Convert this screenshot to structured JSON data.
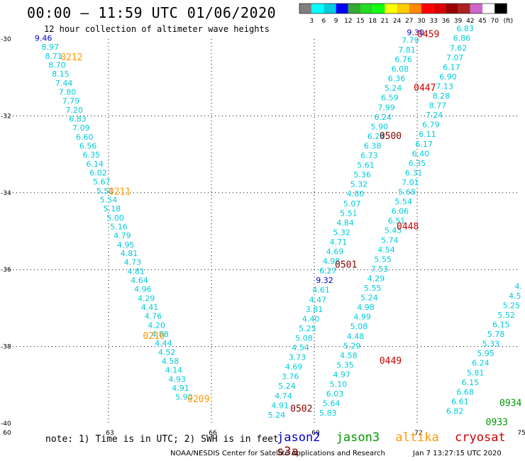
{
  "header": {
    "title": "00:00 — 11:59 UTC 01/06/2020",
    "subtitle": "12 hour collection of altimeter wave heights"
  },
  "colors": {
    "jason2": "#0000cc",
    "jason3": "#009900",
    "altika": "#ff9900",
    "cryosat": "#cc0000",
    "s3a": "#880000",
    "swh_low": "#00ccdd"
  },
  "color_scale": {
    "labels": [
      "3",
      "6",
      "9",
      "12",
      "15",
      "18",
      "21",
      "24",
      "27",
      "30",
      "33",
      "36",
      "39",
      "42",
      "45",
      "70"
    ],
    "unit": "(ft)",
    "colors": [
      "#808080",
      "#00ffff",
      "#00ccdd",
      "#0000ff",
      "#33aa33",
      "#22dd22",
      "#11ff11",
      "#ffff00",
      "#ffcc00",
      "#ff8800",
      "#ff0000",
      "#dd0000",
      "#990000",
      "#aa2222",
      "#cc66cc",
      "#ffffff",
      "#000000"
    ]
  },
  "chart_data": {
    "type": "scatter",
    "xlim": [
      60,
      75
    ],
    "ylim": [
      -40,
      -30
    ],
    "xticks": [
      "60",
      "63",
      "66",
      "69",
      "72",
      "75"
    ],
    "yticks": [
      "-30",
      "-32",
      "-34",
      "-36",
      "-38",
      "-40"
    ],
    "grid": true,
    "tracks": [
      {
        "name": "track-0209-0212",
        "color": "#00ccdd",
        "points": [
          {
            "lon": 61.1,
            "lat": -30.05,
            "v": "9.46"
          },
          {
            "lon": 61.3,
            "lat": -30.28,
            "v": "8.97"
          },
          {
            "lon": 61.4,
            "lat": -30.52,
            "v": "8.71"
          },
          {
            "lon": 61.5,
            "lat": -30.75,
            "v": "8.70"
          },
          {
            "lon": 61.6,
            "lat": -30.98,
            "v": "8.15"
          },
          {
            "lon": 61.7,
            "lat": -31.22,
            "v": "7.44"
          },
          {
            "lon": 61.8,
            "lat": -31.45,
            "v": "7.80"
          },
          {
            "lon": 61.9,
            "lat": -31.68,
            "v": "7.79"
          },
          {
            "lon": 62.0,
            "lat": -31.92,
            "v": "7.20"
          },
          {
            "lon": 62.1,
            "lat": -32.15,
            "v": "6.83"
          },
          {
            "lon": 62.2,
            "lat": -32.38,
            "v": "7.09"
          },
          {
            "lon": 62.3,
            "lat": -32.62,
            "v": "6.60"
          },
          {
            "lon": 62.4,
            "lat": -32.85,
            "v": "6.56"
          },
          {
            "lon": 62.5,
            "lat": -33.08,
            "v": "6.35"
          },
          {
            "lon": 62.6,
            "lat": -33.32,
            "v": "6.14"
          },
          {
            "lon": 62.7,
            "lat": -33.55,
            "v": "6.02"
          },
          {
            "lon": 62.8,
            "lat": -33.78,
            "v": "5.67"
          },
          {
            "lon": 62.9,
            "lat": -34.02,
            "v": "5.51"
          },
          {
            "lon": 63.0,
            "lat": -34.25,
            "v": "5.54"
          },
          {
            "lon": 63.1,
            "lat": -34.48,
            "v": "5.18"
          },
          {
            "lon": 63.2,
            "lat": -34.72,
            "v": "5.00"
          },
          {
            "lon": 63.3,
            "lat": -34.95,
            "v": "5.16"
          },
          {
            "lon": 63.4,
            "lat": -35.18,
            "v": "4.79"
          },
          {
            "lon": 63.5,
            "lat": -35.42,
            "v": "4.95"
          },
          {
            "lon": 63.6,
            "lat": -35.65,
            "v": "4.81"
          },
          {
            "lon": 63.7,
            "lat": -35.88,
            "v": "4.73"
          },
          {
            "lon": 63.8,
            "lat": -36.12,
            "v": "4.81"
          },
          {
            "lon": 63.9,
            "lat": -36.35,
            "v": "4.64"
          },
          {
            "lon": 64.0,
            "lat": -36.58,
            "v": "4.96"
          },
          {
            "lon": 64.1,
            "lat": -36.82,
            "v": "4.29"
          },
          {
            "lon": 64.2,
            "lat": -37.05,
            "v": "4.41"
          },
          {
            "lon": 64.3,
            "lat": -37.28,
            "v": "4.76"
          },
          {
            "lon": 64.4,
            "lat": -37.52,
            "v": "4.20"
          },
          {
            "lon": 64.5,
            "lat": -37.75,
            "v": "4.88"
          },
          {
            "lon": 64.6,
            "lat": -37.98,
            "v": "4.44"
          },
          {
            "lon": 64.7,
            "lat": -38.22,
            "v": "4.52"
          },
          {
            "lon": 64.8,
            "lat": -38.45,
            "v": "4.58"
          },
          {
            "lon": 64.9,
            "lat": -38.68,
            "v": "4.14"
          },
          {
            "lon": 65.0,
            "lat": -38.92,
            "v": "4.93"
          },
          {
            "lon": 65.1,
            "lat": -39.15,
            "v": "4.91"
          },
          {
            "lon": 65.2,
            "lat": -39.38,
            "v": "5.90"
          }
        ]
      },
      {
        "name": "track-0502",
        "color": "#00ccdd",
        "points": [
          {
            "lon": 67.9,
            "lat": -39.85,
            "v": "5.24"
          },
          {
            "lon": 68.0,
            "lat": -39.6,
            "v": "4.91"
          },
          {
            "lon": 68.1,
            "lat": -39.35,
            "v": "4.74"
          },
          {
            "lon": 68.2,
            "lat": -39.1,
            "v": "5.24"
          },
          {
            "lon": 68.3,
            "lat": -38.85,
            "v": "3.76"
          },
          {
            "lon": 68.4,
            "lat": -38.6,
            "v": "4.69"
          },
          {
            "lon": 68.5,
            "lat": -38.35,
            "v": "3.73"
          },
          {
            "lon": 68.6,
            "lat": -38.1,
            "v": "4.54"
          },
          {
            "lon": 68.7,
            "lat": -37.85,
            "v": "5.08"
          },
          {
            "lon": 68.8,
            "lat": -37.6,
            "v": "5.25"
          },
          {
            "lon": 68.9,
            "lat": -37.35,
            "v": "4.40"
          },
          {
            "lon": 69.0,
            "lat": -37.1,
            "v": "3.81"
          },
          {
            "lon": 69.1,
            "lat": -36.85,
            "v": "4.47"
          },
          {
            "lon": 69.2,
            "lat": -36.6,
            "v": "4.61"
          },
          {
            "lon": 69.3,
            "lat": -36.35,
            "v": "9.32"
          },
          {
            "lon": 69.4,
            "lat": -36.1,
            "v": "6.27"
          },
          {
            "lon": 69.5,
            "lat": -35.85,
            "v": "4.98"
          },
          {
            "lon": 69.6,
            "lat": -35.6,
            "v": "4.69"
          },
          {
            "lon": 69.7,
            "lat": -35.35,
            "v": "4.71"
          },
          {
            "lon": 69.8,
            "lat": -35.1,
            "v": "5.32"
          },
          {
            "lon": 69.9,
            "lat": -34.85,
            "v": "4.84"
          },
          {
            "lon": 70.0,
            "lat": -34.6,
            "v": "5.51"
          },
          {
            "lon": 70.1,
            "lat": -34.35,
            "v": "5.07"
          },
          {
            "lon": 70.2,
            "lat": -34.1,
            "v": "4.80"
          },
          {
            "lon": 70.3,
            "lat": -33.85,
            "v": "5.32"
          },
          {
            "lon": 70.4,
            "lat": -33.6,
            "v": "5.36"
          },
          {
            "lon": 70.5,
            "lat": -33.35,
            "v": "5.61"
          },
          {
            "lon": 70.6,
            "lat": -33.1,
            "v": "6.73"
          },
          {
            "lon": 70.7,
            "lat": -32.85,
            "v": "6.38"
          },
          {
            "lon": 70.8,
            "lat": -32.6,
            "v": "6.24"
          },
          {
            "lon": 70.9,
            "lat": -32.35,
            "v": "5.90"
          },
          {
            "lon": 71.0,
            "lat": -32.1,
            "v": "6.24"
          },
          {
            "lon": 71.1,
            "lat": -31.85,
            "v": "7.99"
          },
          {
            "lon": 71.2,
            "lat": -31.6,
            "v": "6.59"
          },
          {
            "lon": 71.3,
            "lat": -31.35,
            "v": "5.24"
          },
          {
            "lon": 71.4,
            "lat": -31.1,
            "v": "6.36"
          },
          {
            "lon": 71.5,
            "lat": -30.85,
            "v": "6.08"
          },
          {
            "lon": 71.6,
            "lat": -30.6,
            "v": "6.76"
          },
          {
            "lon": 71.7,
            "lat": -30.35,
            "v": "7.81"
          },
          {
            "lon": 71.8,
            "lat": -30.1,
            "v": "7.79"
          },
          {
            "lon": 71.95,
            "lat": -29.9,
            "v": "9.30"
          }
        ]
      },
      {
        "name": "track-0448",
        "color": "#00ccdd",
        "points": [
          {
            "lon": 69.4,
            "lat": -39.8,
            "v": "5.83"
          },
          {
            "lon": 69.5,
            "lat": -39.55,
            "v": "5.64"
          },
          {
            "lon": 69.6,
            "lat": -39.3,
            "v": "6.03"
          },
          {
            "lon": 69.7,
            "lat": -39.05,
            "v": "5.10"
          },
          {
            "lon": 69.8,
            "lat": -38.8,
            "v": "4.97"
          },
          {
            "lon": 69.9,
            "lat": -38.55,
            "v": "5.35"
          },
          {
            "lon": 70.0,
            "lat": -38.3,
            "v": "4.58"
          },
          {
            "lon": 70.1,
            "lat": -38.05,
            "v": "5.29"
          },
          {
            "lon": 70.2,
            "lat": -37.8,
            "v": "4.48"
          },
          {
            "lon": 70.3,
            "lat": -37.55,
            "v": "5.08"
          },
          {
            "lon": 70.4,
            "lat": -37.3,
            "v": "4.99"
          },
          {
            "lon": 70.5,
            "lat": -37.05,
            "v": "4.98"
          },
          {
            "lon": 70.6,
            "lat": -36.8,
            "v": "5.24"
          },
          {
            "lon": 70.7,
            "lat": -36.55,
            "v": "5.55"
          },
          {
            "lon": 70.8,
            "lat": -36.3,
            "v": "4.29"
          },
          {
            "lon": 70.9,
            "lat": -36.05,
            "v": "7.53"
          },
          {
            "lon": 71.0,
            "lat": -35.8,
            "v": "5.55"
          },
          {
            "lon": 71.1,
            "lat": -35.55,
            "v": "4.54"
          },
          {
            "lon": 71.2,
            "lat": -35.3,
            "v": "5.74"
          },
          {
            "lon": 71.3,
            "lat": -35.05,
            "v": "5.45"
          },
          {
            "lon": 71.4,
            "lat": -34.8,
            "v": "6.51"
          },
          {
            "lon": 71.5,
            "lat": -34.55,
            "v": "6.06"
          },
          {
            "lon": 71.6,
            "lat": -34.3,
            "v": "5.54"
          },
          {
            "lon": 71.7,
            "lat": -34.05,
            "v": "5.68"
          },
          {
            "lon": 71.8,
            "lat": -33.8,
            "v": "7.01"
          },
          {
            "lon": 71.9,
            "lat": -33.55,
            "v": "6.31"
          },
          {
            "lon": 72.0,
            "lat": -33.3,
            "v": "6.35"
          },
          {
            "lon": 72.1,
            "lat": -33.05,
            "v": "6.40"
          },
          {
            "lon": 72.2,
            "lat": -32.8,
            "v": "6.17"
          },
          {
            "lon": 72.3,
            "lat": -32.55,
            "v": "6.11"
          },
          {
            "lon": 72.4,
            "lat": -32.3,
            "v": "6.79"
          },
          {
            "lon": 72.5,
            "lat": -32.05,
            "v": "7.24"
          },
          {
            "lon": 72.6,
            "lat": -31.8,
            "v": "8.77"
          },
          {
            "lon": 72.7,
            "lat": -31.55,
            "v": "8.28"
          },
          {
            "lon": 72.8,
            "lat": -31.3,
            "v": "7.13"
          },
          {
            "lon": 72.9,
            "lat": -31.05,
            "v": "6.90"
          },
          {
            "lon": 73.0,
            "lat": -30.8,
            "v": "6.17"
          },
          {
            "lon": 73.1,
            "lat": -30.55,
            "v": "7.07"
          },
          {
            "lon": 73.2,
            "lat": -30.3,
            "v": "7.62"
          },
          {
            "lon": 73.3,
            "lat": -30.05,
            "v": "6.86"
          },
          {
            "lon": 73.4,
            "lat": -29.8,
            "v": "6.83"
          }
        ]
      },
      {
        "name": "track-0933",
        "color": "#00ccdd",
        "points": [
          {
            "lon": 73.1,
            "lat": -39.75,
            "v": "6.82"
          },
          {
            "lon": 73.25,
            "lat": -39.5,
            "v": "6.61"
          },
          {
            "lon": 73.4,
            "lat": -39.25,
            "v": "6.68"
          },
          {
            "lon": 73.55,
            "lat": -39.0,
            "v": "6.15"
          },
          {
            "lon": 73.7,
            "lat": -38.75,
            "v": "5.81"
          },
          {
            "lon": 73.85,
            "lat": -38.5,
            "v": "6.24"
          },
          {
            "lon": 74.0,
            "lat": -38.25,
            "v": "5.95"
          },
          {
            "lon": 74.15,
            "lat": -38.0,
            "v": "5.33"
          },
          {
            "lon": 74.3,
            "lat": -37.75,
            "v": "5.78"
          },
          {
            "lon": 74.45,
            "lat": -37.5,
            "v": "6.15"
          },
          {
            "lon": 74.6,
            "lat": -37.25,
            "v": "5.52"
          },
          {
            "lon": 74.75,
            "lat": -37.0,
            "v": "5.25"
          },
          {
            "lon": 74.85,
            "lat": -36.75,
            "v": "4.5"
          },
          {
            "lon": 74.95,
            "lat": -36.5,
            "v": "4."
          }
        ]
      }
    ],
    "time_labels": [
      {
        "lon": 61.6,
        "lat": -30.55,
        "text": "0212",
        "color": "#ff9900"
      },
      {
        "lon": 63.0,
        "lat": -34.05,
        "text": "0211",
        "color": "#ff9900"
      },
      {
        "lon": 64.0,
        "lat": -37.8,
        "text": "0210",
        "color": "#ff9900"
      },
      {
        "lon": 65.3,
        "lat": -39.45,
        "text": "0209",
        "color": "#ff9900"
      },
      {
        "lon": 68.3,
        "lat": -39.7,
        "text": "0502",
        "color": "#880000"
      },
      {
        "lon": 69.6,
        "lat": -35.95,
        "text": "0501",
        "color": "#880000"
      },
      {
        "lon": 70.9,
        "lat": -32.6,
        "text": "0500",
        "color": "#880000"
      },
      {
        "lon": 72.0,
        "lat": -29.95,
        "text": "0459",
        "color": "#cc0000"
      },
      {
        "lon": 71.9,
        "lat": -31.35,
        "text": "0447",
        "color": "#cc0000"
      },
      {
        "lon": 71.4,
        "lat": -34.95,
        "text": "0448",
        "color": "#cc0000"
      },
      {
        "lon": 70.9,
        "lat": -38.45,
        "text": "0449",
        "color": "#cc0000"
      },
      {
        "lon": 74.4,
        "lat": -39.55,
        "text": "0934",
        "color": "#009900"
      },
      {
        "lon": 74.0,
        "lat": -40.05,
        "text": "0933",
        "color": "#009900"
      }
    ]
  },
  "footer": {
    "note": "note: 1) Time is in UTC; 2) SWH is in feet",
    "satellites": [
      "jason2",
      "jason3",
      "altika",
      "cryosat",
      "s3a"
    ],
    "credit": "NOAA/NESDIS Center for Satellite Applications and Research",
    "generated": "Jan  7 13:27:15 UTC 2020"
  }
}
